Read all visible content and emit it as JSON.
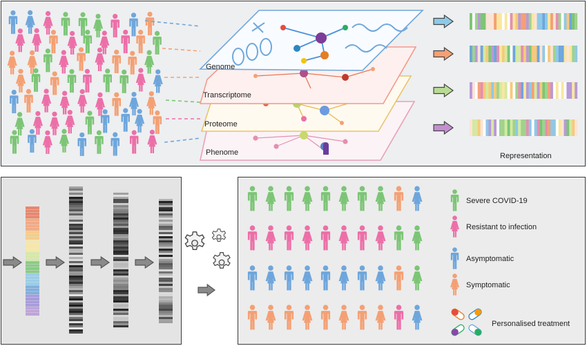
{
  "layers": [
    {
      "label": "Genome",
      "color": "#6fa8dc"
    },
    {
      "label": "Transcriptome",
      "color": "#f4998d"
    },
    {
      "label": "Proteome",
      "color": "#e9c46a"
    },
    {
      "label": "Phenome",
      "color": "#e8a0b8"
    }
  ],
  "representation_label": "Representation",
  "legend": [
    {
      "label": "Severe COVID-19",
      "color": "#7cc576"
    },
    {
      "label": "Resistant to infection",
      "color": "#ec6fa8"
    },
    {
      "label": "Asymptomatic",
      "color": "#6ea6dc"
    },
    {
      "label": "Symptomatic",
      "color": "#f4a074"
    },
    {
      "label": "Personalised treatment",
      "icon": "pill-capsule-icon"
    }
  ],
  "colors": {
    "green": "#7cc576",
    "pink": "#ec6fa8",
    "blue": "#6ea6dc",
    "orange": "#f4a074",
    "arrow_gray": "#8a8a8a"
  },
  "patient_grid": [
    [
      "green",
      "green",
      "green",
      "green",
      "green",
      "green",
      "green",
      "green",
      "orange",
      "blue"
    ],
    [
      "pink",
      "pink",
      "pink",
      "pink",
      "pink",
      "pink",
      "pink",
      "pink",
      "green",
      "green"
    ],
    [
      "blue",
      "blue",
      "blue",
      "blue",
      "blue",
      "blue",
      "blue",
      "blue",
      "orange",
      "green"
    ],
    [
      "orange",
      "orange",
      "orange",
      "orange",
      "orange",
      "orange",
      "orange",
      "orange",
      "pink",
      "blue"
    ]
  ]
}
